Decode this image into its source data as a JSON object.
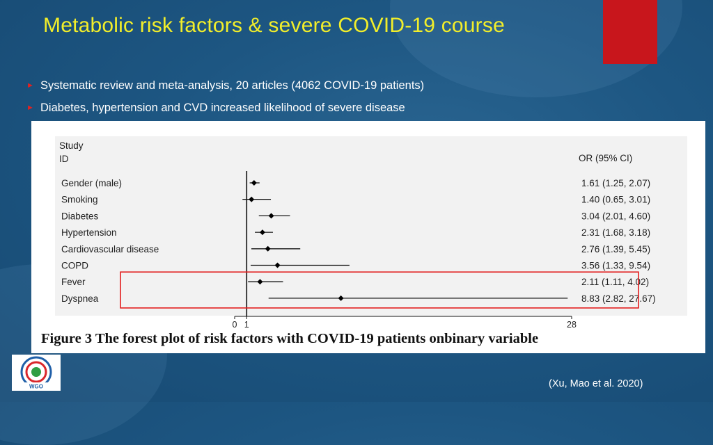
{
  "slide": {
    "title": "Metabolic risk factors & severe COVID-19 course",
    "bullets": [
      "Systematic review and meta-analysis, 20 articles (4062 COVID-19 patients)",
      "Diabetes, hypertension and CVD increased likelihood of severe disease"
    ],
    "reference": "(Xu, Mao et al. 2020)",
    "accent_color": "#f2ee2a",
    "logo_text": "WGO"
  },
  "figure": {
    "caption": "Figure 3 The forest plot of risk factors with COVID-19 patients onbinary variable"
  },
  "chart_data": {
    "type": "forest",
    "column_header_left": [
      "Study",
      "ID"
    ],
    "column_header_right": "OR (95% CI)",
    "reference_line": 1,
    "xlim": [
      0,
      28
    ],
    "x_ticks": [
      "0",
      "1",
      "28"
    ],
    "x_tick_values": [
      0,
      1,
      28
    ],
    "rows": [
      {
        "label": "Gender (male)",
        "or": 1.61,
        "lo": 1.25,
        "hi": 2.07,
        "text": "1.61 (1.25, 2.07)"
      },
      {
        "label": "Smoking",
        "or": 1.4,
        "lo": 0.65,
        "hi": 3.01,
        "text": "1.40 (0.65, 3.01)"
      },
      {
        "label": "Diabetes",
        "or": 3.04,
        "lo": 2.01,
        "hi": 4.6,
        "text": "3.04 (2.01, 4.60)"
      },
      {
        "label": "Hypertension",
        "or": 2.31,
        "lo": 1.68,
        "hi": 3.18,
        "text": "2.31 (1.68, 3.18)"
      },
      {
        "label": "Cardiovascular disease",
        "or": 2.76,
        "lo": 1.39,
        "hi": 5.45,
        "text": "2.76 (1.39, 5.45)"
      },
      {
        "label": "COPD",
        "or": 3.56,
        "lo": 1.33,
        "hi": 9.54,
        "text": "3.56 (1.33, 9.54)"
      },
      {
        "label": "Fever",
        "or": 2.11,
        "lo": 1.11,
        "hi": 4.02,
        "text": "2.11 (1.11, 4.02)"
      },
      {
        "label": "Dyspnea",
        "or": 8.83,
        "lo": 2.82,
        "hi": 27.67,
        "text": "8.83 (2.82, 27.67)"
      }
    ],
    "highlighted_rows": [
      "Fever",
      "Dyspnea"
    ],
    "highlight_color": "#e31e1e"
  }
}
